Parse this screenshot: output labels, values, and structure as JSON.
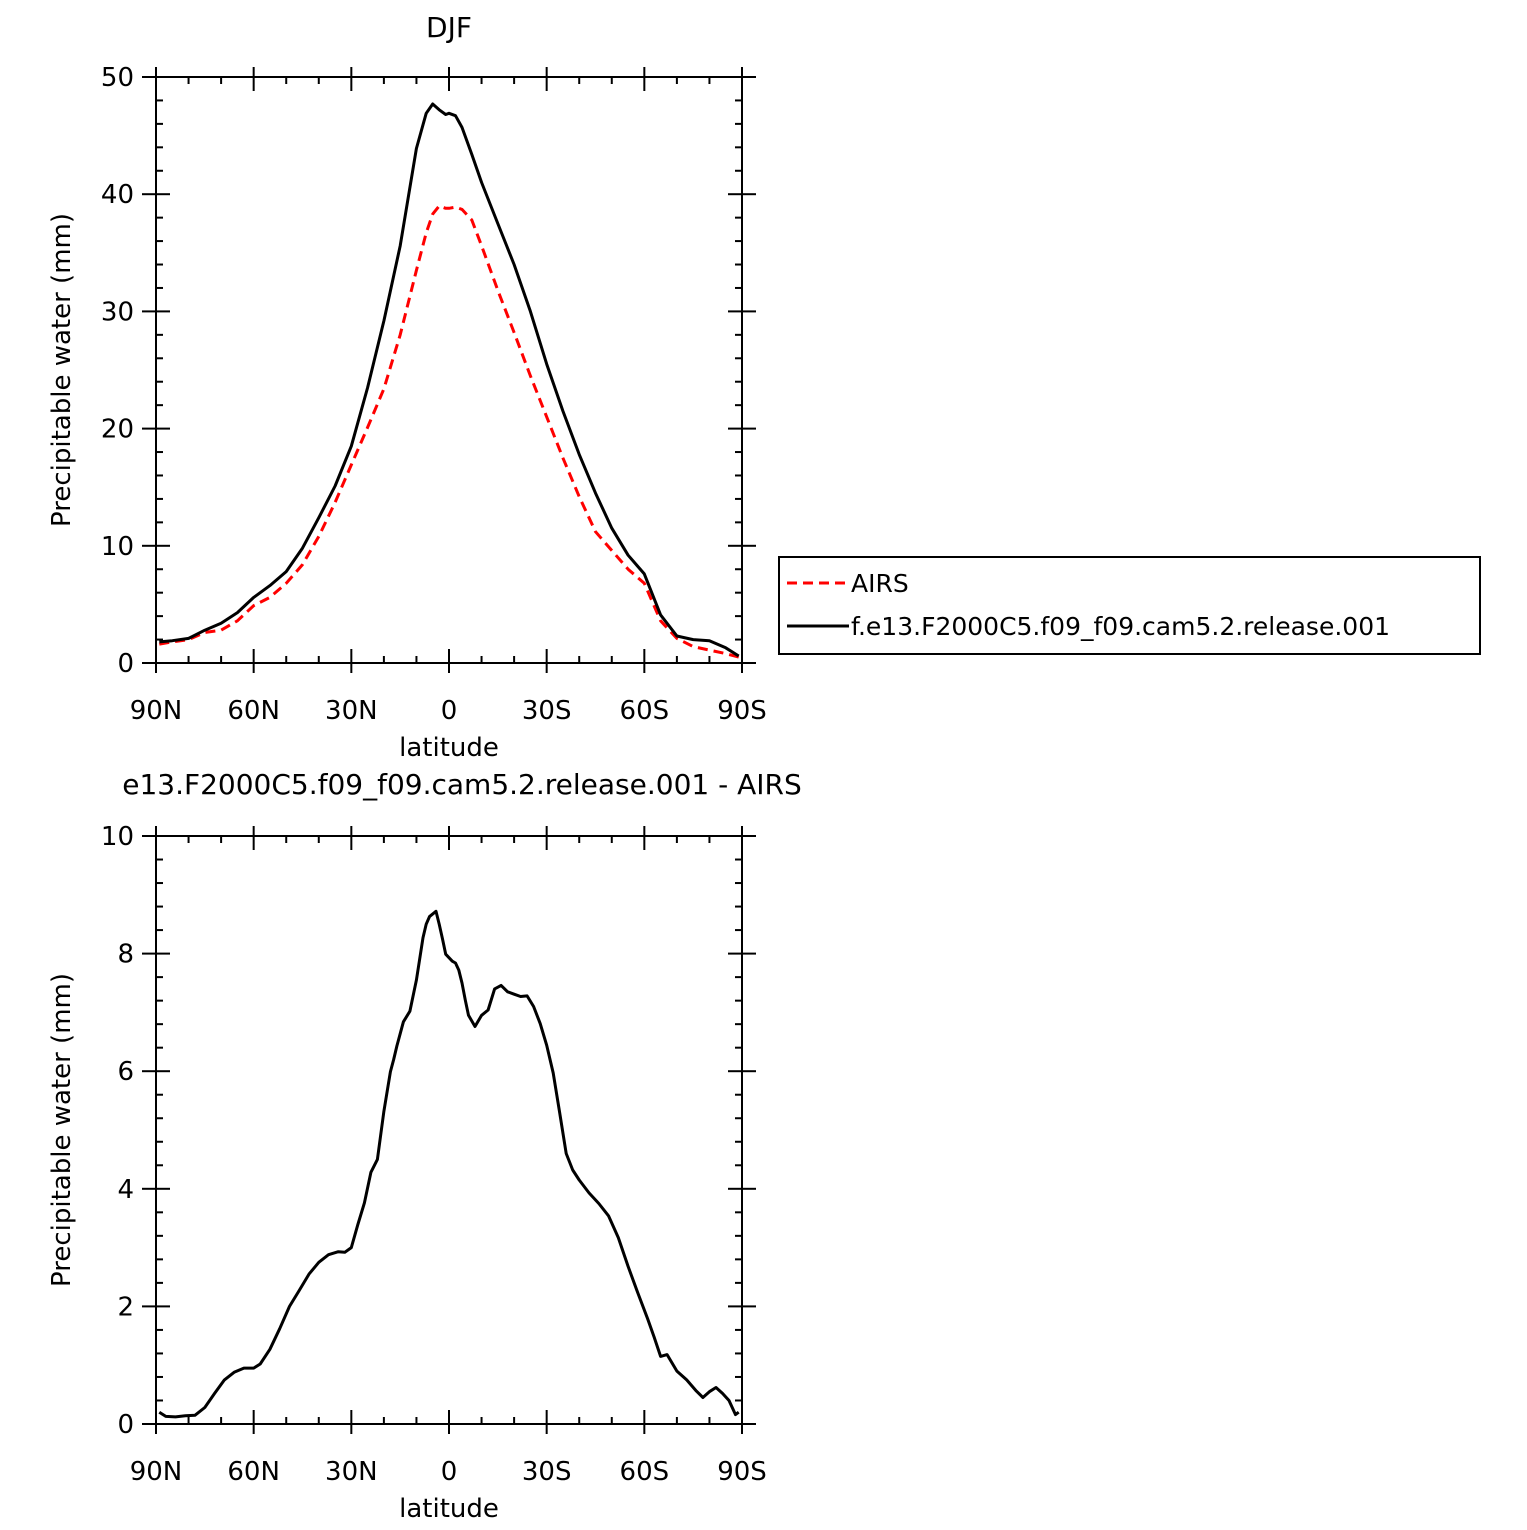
{
  "chart_data": [
    {
      "type": "line",
      "title": "DJF",
      "xlabel": "latitude",
      "ylabel": "Precipitable water (mm)",
      "xlim": [
        90,
        -90
      ],
      "ylim": [
        0,
        50
      ],
      "xticks": [
        90,
        60,
        30,
        0,
        -30,
        -60,
        -90
      ],
      "xtick_labels": [
        "90N",
        "60N",
        "30N",
        "0",
        "30S",
        "60S",
        "90S"
      ],
      "yticks": [
        0,
        10,
        20,
        30,
        40,
        50
      ],
      "ytick_labels": [
        "0",
        "10",
        "20",
        "30",
        "40",
        "50"
      ],
      "legend_position": "right",
      "series": [
        {
          "name": "AIRS",
          "color": "#ff0000",
          "dash": "dashed",
          "x": [
            89,
            85,
            80,
            75,
            70,
            65,
            60,
            55,
            50,
            45,
            40,
            35,
            30,
            25,
            20,
            15,
            10,
            7,
            5,
            3,
            1,
            0,
            -2,
            -4,
            -7,
            -10,
            -15,
            -20,
            -25,
            -30,
            -35,
            -40,
            -45,
            -50,
            -55,
            -60,
            -65,
            -70,
            -75,
            -80,
            -85,
            -89
          ],
          "y": [
            1.6,
            1.8,
            2.0,
            2.6,
            2.8,
            3.6,
            4.9,
            5.6,
            6.8,
            8.4,
            10.8,
            13.7,
            16.9,
            20.1,
            23.4,
            28.0,
            33.5,
            36.7,
            38.3,
            39.0,
            38.8,
            38.8,
            38.9,
            38.7,
            37.8,
            35.6,
            31.8,
            28.2,
            24.5,
            21.0,
            17.5,
            14.2,
            11.2,
            9.6,
            8.0,
            6.8,
            3.6,
            2.1,
            1.4,
            1.1,
            0.8,
            0.5
          ]
        },
        {
          "name": "f.e13.F2000C5.f09_f09.cam5.2.release.001",
          "color": "#000000",
          "dash": "solid",
          "x": [
            89,
            85,
            80,
            75,
            70,
            65,
            60,
            55,
            50,
            45,
            40,
            35,
            30,
            25,
            20,
            15,
            10,
            7,
            5,
            3,
            1,
            0,
            -2,
            -4,
            -7,
            -10,
            -15,
            -20,
            -25,
            -30,
            -35,
            -40,
            -45,
            -50,
            -55,
            -60,
            -65,
            -70,
            -75,
            -80,
            -85,
            -89
          ],
          "y": [
            1.8,
            1.9,
            2.1,
            2.8,
            3.4,
            4.3,
            5.6,
            6.6,
            7.8,
            9.8,
            12.4,
            15.1,
            18.5,
            23.5,
            29.2,
            35.6,
            43.9,
            46.9,
            47.7,
            47.2,
            46.8,
            46.9,
            46.7,
            45.7,
            43.4,
            41.0,
            37.5,
            34.0,
            30.0,
            25.5,
            21.5,
            17.8,
            14.5,
            11.5,
            9.2,
            7.6,
            4.1,
            2.3,
            2.0,
            1.9,
            1.3,
            0.6
          ]
        }
      ]
    },
    {
      "type": "line",
      "title": "e13.F2000C5.f09_f09.cam5.2.release.001 - AIRS",
      "xlabel": "latitude",
      "ylabel": "Precipitable water (mm)",
      "xlim": [
        90,
        -90
      ],
      "ylim": [
        0,
        10
      ],
      "xticks": [
        90,
        60,
        30,
        0,
        -30,
        -60,
        -90
      ],
      "xtick_labels": [
        "90N",
        "60N",
        "30N",
        "0",
        "30S",
        "60S",
        "90S"
      ],
      "yticks": [
        0,
        2,
        4,
        6,
        8,
        10
      ],
      "ytick_labels": [
        "0",
        "2",
        "4",
        "6",
        "8",
        "10"
      ],
      "series": [
        {
          "color": "#000000",
          "dash": "solid",
          "x": [
            89,
            87,
            84,
            81,
            78,
            75,
            72,
            69,
            66,
            63,
            60,
            58,
            55,
            52,
            49,
            46,
            43,
            40,
            37,
            34,
            32,
            30,
            28,
            26,
            24,
            22,
            20,
            18,
            17,
            16,
            14,
            12,
            10,
            8,
            7,
            6,
            4,
            3,
            2,
            1,
            0,
            -1,
            -2,
            -3,
            -4,
            -5,
            -6,
            -8,
            -10,
            -12,
            -14,
            -16,
            -18,
            -20,
            -22,
            -24,
            -26,
            -28,
            -30,
            -32,
            -34,
            -36,
            -38,
            -40,
            -43,
            -46,
            -49,
            -52,
            -55,
            -58,
            -61,
            -63,
            -65,
            -67,
            -70,
            -73,
            -76,
            -78,
            -80,
            -82,
            -84,
            -86,
            -88,
            -89
          ],
          "y": [
            0.2,
            0.13,
            0.12,
            0.14,
            0.15,
            0.28,
            0.52,
            0.75,
            0.88,
            0.95,
            0.95,
            1.02,
            1.27,
            1.62,
            2.0,
            2.27,
            2.55,
            2.75,
            2.88,
            2.93,
            2.92,
            3.0,
            3.39,
            3.76,
            4.28,
            4.5,
            5.32,
            5.99,
            6.2,
            6.43,
            6.84,
            7.02,
            7.55,
            8.27,
            8.5,
            8.63,
            8.72,
            8.5,
            8.25,
            7.99,
            7.93,
            7.87,
            7.84,
            7.72,
            7.5,
            7.21,
            6.95,
            6.76,
            6.95,
            7.04,
            7.4,
            7.46,
            7.35,
            7.31,
            7.27,
            7.28,
            7.1,
            6.81,
            6.44,
            5.97,
            5.29,
            4.6,
            4.32,
            4.15,
            3.93,
            3.75,
            3.54,
            3.17,
            2.68,
            2.23,
            1.79,
            1.48,
            1.15,
            1.18,
            0.9,
            0.75,
            0.56,
            0.45,
            0.55,
            0.62,
            0.52,
            0.4,
            0.16,
            0.2
          ]
        }
      ]
    }
  ],
  "legend": {
    "entries": [
      "AIRS",
      "f.e13.F2000C5.f09_f09.cam5.2.release.001"
    ]
  }
}
